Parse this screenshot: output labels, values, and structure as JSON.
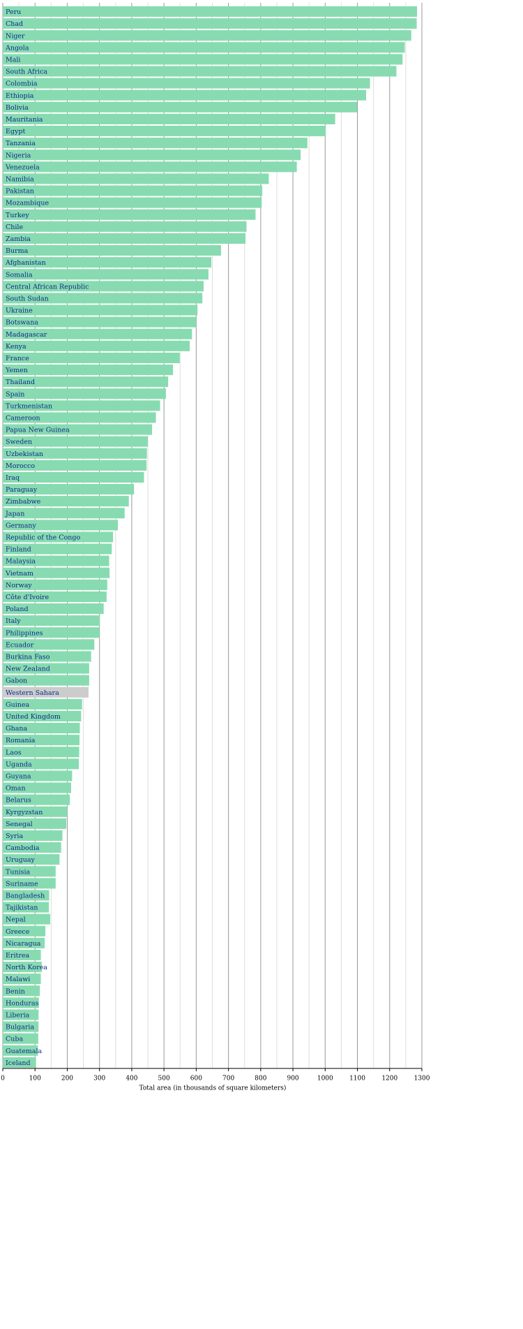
{
  "chart_data": {
    "type": "barh",
    "xlabel": "Total area (in thousands of square kilometers)",
    "categories": [
      "Peru",
      "Chad",
      "Niger",
      "Angola",
      "Mali",
      "South Africa",
      "Colombia",
      "Ethiopia",
      "Bolivia",
      "Mauritania",
      "Egypt",
      "Tanzania",
      "Nigeria",
      "Venezuela",
      "Namibia",
      "Pakistan",
      "Mozambique",
      "Turkey",
      "Chile",
      "Zambia",
      "Burma",
      "Afghanistan",
      "Somalia",
      "Central African Republic",
      "South Sudan",
      "Ukraine",
      "Botswana",
      "Madagascar",
      "Kenya",
      "France",
      "Yemen",
      "Thailand",
      "Spain",
      "Turkmenistan",
      "Cameroon",
      "Papua New Guinea",
      "Sweden",
      "Uzbekistan",
      "Morocco",
      "Iraq",
      "Paraguay",
      "Zimbabwe",
      "Japan",
      "Germany",
      "Republic of the Congo",
      "Finland",
      "Malaysia",
      "Vietnam",
      "Norway",
      "Côte d'Ivoire",
      "Poland",
      "Italy",
      "Philippines",
      "Ecuador",
      "Burkina Faso",
      "New Zealand",
      "Gabon",
      "Western Sahara",
      "Guinea",
      "United Kingdom",
      "Ghana",
      "Romania",
      "Laos",
      "Uganda",
      "Guyana",
      "Oman",
      "Belarus",
      "Kyrgyzstan",
      "Senegal",
      "Syria",
      "Cambodia",
      "Uruguay",
      "Tunisia",
      "Suriname",
      "Bangladesh",
      "Tajikistan",
      "Nepal",
      "Greece",
      "Nicaragua",
      "Eritrea",
      "North Korea",
      "Malawi",
      "Benin",
      "Honduras",
      "Liberia",
      "Bulgaria",
      "Cuba",
      "Guatemala",
      "Iceland"
    ],
    "values": [
      1285,
      1284,
      1267,
      1247,
      1240,
      1221,
      1139,
      1127,
      1099,
      1031,
      1002,
      945,
      924,
      912,
      825,
      805,
      803,
      784,
      756,
      753,
      677,
      647,
      638,
      623,
      619,
      604,
      600,
      587,
      580,
      549,
      528,
      513,
      506,
      488,
      475,
      463,
      450,
      447,
      446,
      438,
      407,
      391,
      378,
      357,
      342,
      338,
      330,
      331,
      324,
      322,
      313,
      301,
      300,
      284,
      274,
      268,
      268,
      266,
      246,
      243,
      239,
      238,
      237,
      236,
      215,
      212,
      208,
      200,
      197,
      185,
      181,
      176,
      164,
      164,
      144,
      143,
      147,
      132,
      130,
      118,
      121,
      118,
      115,
      112,
      111,
      111,
      110,
      109,
      103
    ],
    "colors": [
      "#88dbb1",
      "#88dbb1",
      "#88dbb1",
      "#88dbb1",
      "#88dbb1",
      "#88dbb1",
      "#88dbb1",
      "#88dbb1",
      "#88dbb1",
      "#88dbb1",
      "#88dbb1",
      "#88dbb1",
      "#88dbb1",
      "#88dbb1",
      "#88dbb1",
      "#88dbb1",
      "#88dbb1",
      "#88dbb1",
      "#88dbb1",
      "#88dbb1",
      "#88dbb1",
      "#88dbb1",
      "#88dbb1",
      "#88dbb1",
      "#88dbb1",
      "#88dbb1",
      "#88dbb1",
      "#88dbb1",
      "#88dbb1",
      "#88dbb1",
      "#88dbb1",
      "#88dbb1",
      "#88dbb1",
      "#88dbb1",
      "#88dbb1",
      "#88dbb1",
      "#88dbb1",
      "#88dbb1",
      "#88dbb1",
      "#88dbb1",
      "#88dbb1",
      "#88dbb1",
      "#88dbb1",
      "#88dbb1",
      "#88dbb1",
      "#88dbb1",
      "#88dbb1",
      "#88dbb1",
      "#88dbb1",
      "#88dbb1",
      "#88dbb1",
      "#88dbb1",
      "#88dbb1",
      "#88dbb1",
      "#88dbb1",
      "#88dbb1",
      "#88dbb1",
      "#cccccc",
      "#88dbb1",
      "#88dbb1",
      "#88dbb1",
      "#88dbb1",
      "#88dbb1",
      "#88dbb1",
      "#88dbb1",
      "#88dbb1",
      "#88dbb1",
      "#88dbb1",
      "#88dbb1",
      "#88dbb1",
      "#88dbb1",
      "#88dbb1",
      "#88dbb1",
      "#88dbb1",
      "#88dbb1",
      "#88dbb1",
      "#88dbb1",
      "#88dbb1",
      "#88dbb1",
      "#88dbb1",
      "#88dbb1",
      "#88dbb1",
      "#88dbb1",
      "#88dbb1",
      "#88dbb1",
      "#88dbb1",
      "#88dbb1",
      "#88dbb1",
      "#88dbb1"
    ],
    "xlim": [
      0,
      1300
    ],
    "xticks": [
      0,
      100,
      200,
      300,
      400,
      500,
      600,
      700,
      800,
      900,
      1000,
      1100,
      1200,
      1300
    ],
    "xminor": [
      50,
      150,
      250,
      350,
      450,
      550,
      650,
      750,
      850,
      950,
      1050,
      1150,
      1250
    ],
    "grid": true
  }
}
